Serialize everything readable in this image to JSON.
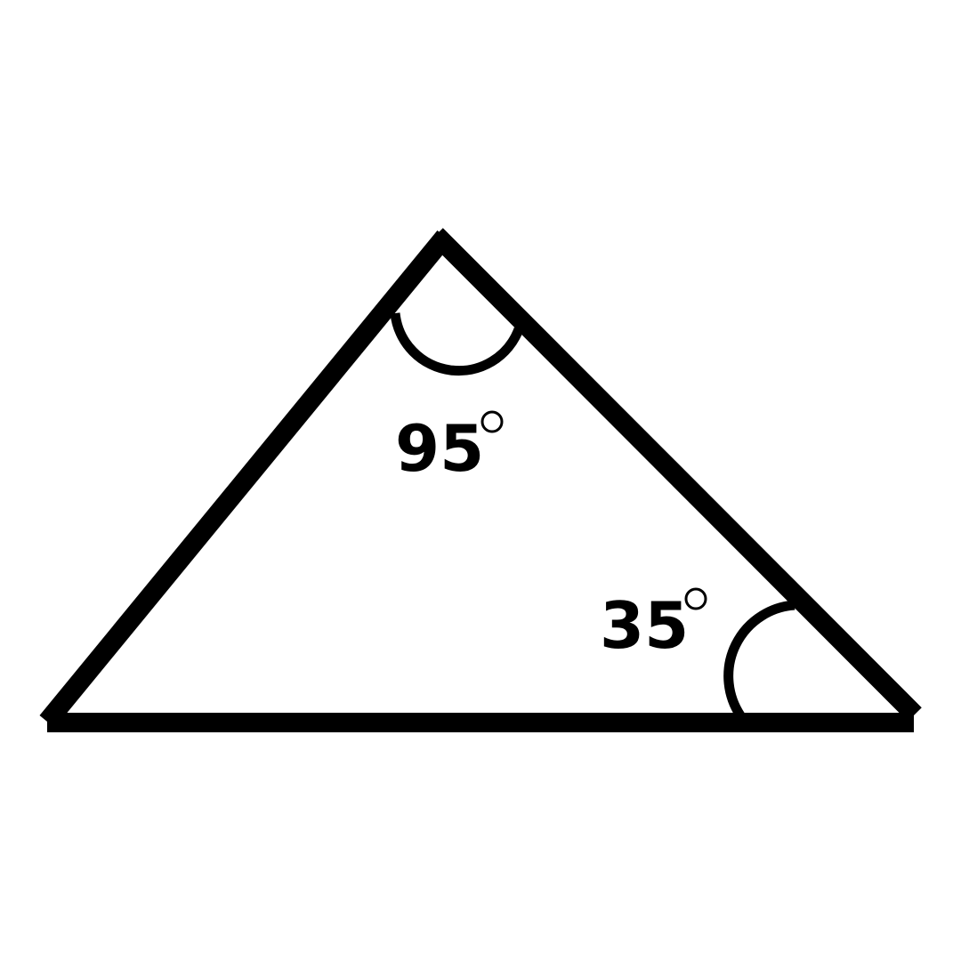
{
  "diagram": {
    "angles": {
      "top": {
        "value": "95",
        "unit": "degree"
      },
      "bottom_right": {
        "value": "35",
        "unit": "degree"
      }
    }
  }
}
